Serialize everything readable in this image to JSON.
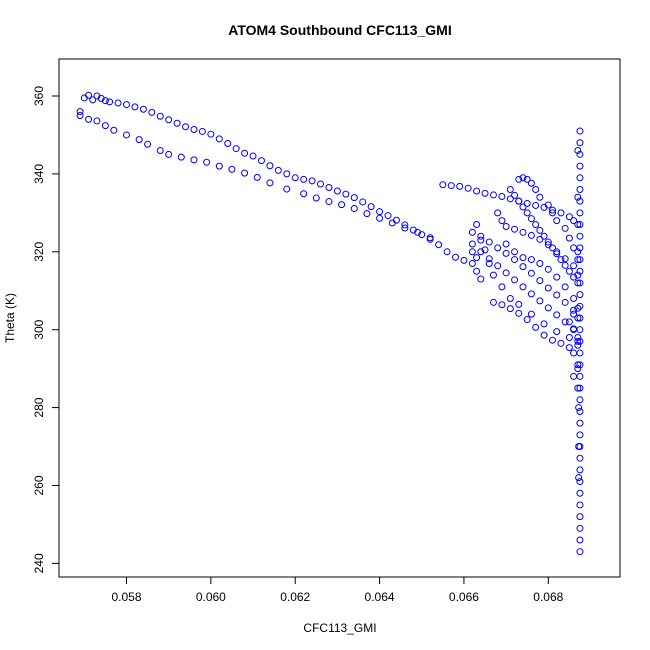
{
  "chart_data": {
    "type": "scatter",
    "title": "ATOM4 Southbound CFC113_GMI",
    "xlabel": "CFC113_GMI",
    "ylabel": "Theta (K)",
    "xlim": [
      0.0564,
      0.0697
    ],
    "ylim": [
      236.5,
      369.5
    ],
    "x_ticks": [
      0.058,
      0.06,
      0.062,
      0.064,
      0.066,
      0.068
    ],
    "x_tick_labels": [
      "0.058",
      "0.060",
      "0.062",
      "0.064",
      "0.066",
      "0.068"
    ],
    "y_ticks": [
      240,
      260,
      280,
      300,
      320,
      340,
      360
    ],
    "y_tick_labels": [
      "240",
      "260",
      "280",
      "300",
      "320",
      "340",
      "360"
    ],
    "grid": false,
    "marker": "open-circle",
    "color": "#0000ff",
    "series": [
      {
        "points": [
          [
            0.0569,
            356.0
          ],
          [
            0.057,
            359.5
          ],
          [
            0.0571,
            360.2
          ],
          [
            0.0572,
            359.0
          ],
          [
            0.0573,
            360.0
          ],
          [
            0.0574,
            359.4
          ],
          [
            0.0575,
            358.8
          ],
          [
            0.0576,
            358.5
          ],
          [
            0.0578,
            358.2
          ],
          [
            0.058,
            357.8
          ],
          [
            0.0582,
            357.2
          ],
          [
            0.0584,
            356.6
          ],
          [
            0.0586,
            355.8
          ],
          [
            0.0588,
            354.8
          ],
          [
            0.059,
            353.9
          ],
          [
            0.0592,
            353.0
          ],
          [
            0.0594,
            352.1
          ],
          [
            0.0596,
            351.4
          ],
          [
            0.0598,
            350.9
          ],
          [
            0.06,
            350.2
          ],
          [
            0.0602,
            349.0
          ],
          [
            0.0604,
            347.8
          ],
          [
            0.0606,
            346.5
          ],
          [
            0.0608,
            345.3
          ],
          [
            0.061,
            344.6
          ],
          [
            0.0612,
            343.4
          ],
          [
            0.0614,
            342.1
          ],
          [
            0.0616,
            340.9
          ],
          [
            0.0618,
            340.0
          ],
          [
            0.062,
            339.0
          ],
          [
            0.0622,
            338.6
          ],
          [
            0.0624,
            338.2
          ],
          [
            0.0626,
            337.4
          ],
          [
            0.0628,
            336.5
          ],
          [
            0.063,
            335.6
          ],
          [
            0.0632,
            334.8
          ],
          [
            0.0634,
            333.9
          ],
          [
            0.0636,
            332.8
          ],
          [
            0.0638,
            331.6
          ],
          [
            0.064,
            330.3
          ],
          [
            0.0642,
            329.3
          ],
          [
            0.0644,
            328.1
          ],
          [
            0.0646,
            326.9
          ],
          [
            0.0648,
            325.6
          ],
          [
            0.065,
            324.4
          ],
          [
            0.0652,
            323.2
          ],
          [
            0.0654,
            321.8
          ],
          [
            0.0656,
            320.0
          ],
          [
            0.0658,
            318.6
          ],
          [
            0.066,
            317.8
          ],
          [
            0.0569,
            355.0
          ],
          [
            0.0571,
            354.0
          ],
          [
            0.0573,
            353.6
          ],
          [
            0.0575,
            352.4
          ],
          [
            0.0577,
            351.2
          ],
          [
            0.058,
            350.0
          ],
          [
            0.0583,
            348.8
          ],
          [
            0.0585,
            347.6
          ],
          [
            0.0588,
            346.0
          ],
          [
            0.059,
            345.0
          ],
          [
            0.0593,
            344.3
          ],
          [
            0.0596,
            343.6
          ],
          [
            0.0599,
            343.0
          ],
          [
            0.0602,
            342.0
          ],
          [
            0.0605,
            341.2
          ],
          [
            0.0608,
            340.2
          ],
          [
            0.0611,
            339.1
          ],
          [
            0.0614,
            337.7
          ],
          [
            0.0618,
            336.1
          ],
          [
            0.0622,
            334.9
          ],
          [
            0.0625,
            333.8
          ],
          [
            0.0628,
            332.9
          ],
          [
            0.0631,
            332.1
          ],
          [
            0.0634,
            331.1
          ],
          [
            0.0637,
            329.8
          ],
          [
            0.064,
            328.6
          ],
          [
            0.0643,
            327.4
          ],
          [
            0.0646,
            326.1
          ],
          [
            0.0649,
            325.0
          ],
          [
            0.0652,
            323.6
          ],
          [
            0.0655,
            337.2
          ],
          [
            0.0657,
            337.0
          ],
          [
            0.0659,
            336.8
          ],
          [
            0.0661,
            336.3
          ],
          [
            0.0663,
            335.6
          ],
          [
            0.0665,
            335.0
          ],
          [
            0.0667,
            334.6
          ],
          [
            0.0669,
            334.2
          ],
          [
            0.0671,
            333.6
          ],
          [
            0.0673,
            333.0
          ],
          [
            0.0675,
            332.4
          ],
          [
            0.0677,
            331.9
          ],
          [
            0.0679,
            331.4
          ],
          [
            0.0681,
            330.7
          ],
          [
            0.0683,
            330.0
          ],
          [
            0.0685,
            329.0
          ],
          [
            0.0686,
            328.0
          ],
          [
            0.0687,
            327.0
          ],
          [
            0.0662,
            325.0
          ],
          [
            0.0664,
            324.0
          ],
          [
            0.0666,
            322.5
          ],
          [
            0.0668,
            321.0
          ],
          [
            0.067,
            319.6
          ],
          [
            0.0672,
            318.0
          ],
          [
            0.0674,
            316.2
          ],
          [
            0.0676,
            314.5
          ],
          [
            0.0678,
            312.6
          ],
          [
            0.068,
            310.7
          ],
          [
            0.0682,
            308.9
          ],
          [
            0.0684,
            307.0
          ],
          [
            0.0686,
            305.0
          ],
          [
            0.0687,
            303.0
          ],
          [
            0.0667,
            307.0
          ],
          [
            0.0669,
            306.4
          ],
          [
            0.0671,
            305.4
          ],
          [
            0.0673,
            304.2
          ],
          [
            0.0675,
            302.6
          ],
          [
            0.0677,
            300.6
          ],
          [
            0.0679,
            298.6
          ],
          [
            0.0681,
            297.3
          ],
          [
            0.0683,
            296.5
          ],
          [
            0.0685,
            295.4
          ],
          [
            0.0673,
            338.6
          ],
          [
            0.0674,
            339.0
          ],
          [
            0.0675,
            338.6
          ],
          [
            0.0676,
            337.6
          ],
          [
            0.0677,
            336.0
          ],
          [
            0.0678,
            334.0
          ],
          [
            0.068,
            332.0
          ],
          [
            0.0681,
            330.0
          ],
          [
            0.0682,
            328.0
          ],
          [
            0.0684,
            326.0
          ],
          [
            0.0685,
            323.5
          ],
          [
            0.0686,
            321.0
          ],
          [
            0.0687,
            318.0
          ],
          [
            0.067,
            322.0
          ],
          [
            0.0672,
            320.0
          ],
          [
            0.0674,
            318.5
          ],
          [
            0.0676,
            318.0
          ],
          [
            0.0678,
            317.0
          ],
          [
            0.068,
            315.5
          ],
          [
            0.0682,
            313.5
          ],
          [
            0.0684,
            311.0
          ],
          [
            0.0686,
            308.0
          ],
          [
            0.0687,
            305.5
          ],
          [
            0.0664,
            320.0
          ],
          [
            0.0666,
            318.2
          ],
          [
            0.0668,
            316.4
          ],
          [
            0.067,
            314.6
          ],
          [
            0.0672,
            312.8
          ],
          [
            0.0674,
            311.0
          ],
          [
            0.0676,
            309.2
          ],
          [
            0.0678,
            307.4
          ],
          [
            0.068,
            305.6
          ],
          [
            0.0682,
            303.8
          ],
          [
            0.0684,
            302.0
          ],
          [
            0.0686,
            300.2
          ],
          [
            0.0687,
            298.0
          ],
          [
            0.0668,
            330.0
          ],
          [
            0.0669,
            328.0
          ],
          [
            0.067,
            326.5
          ],
          [
            0.0672,
            325.8
          ],
          [
            0.0674,
            325.0
          ],
          [
            0.0676,
            324.2
          ],
          [
            0.0678,
            323.2
          ],
          [
            0.068,
            321.8
          ],
          [
            0.0682,
            320.0
          ],
          [
            0.0684,
            318.2
          ],
          [
            0.0686,
            316.4
          ],
          [
            0.0687,
            314.0
          ],
          [
            0.0663,
            327.0
          ],
          [
            0.0664,
            323.0
          ],
          [
            0.0665,
            320.5
          ],
          [
            0.0666,
            317.0
          ],
          [
            0.0667,
            314.0
          ],
          [
            0.0669,
            311.0
          ],
          [
            0.0671,
            308.0
          ],
          [
            0.0673,
            306.5
          ],
          [
            0.0676,
            304.0
          ],
          [
            0.0679,
            301.5
          ],
          [
            0.0682,
            299.5
          ],
          [
            0.0685,
            298.0
          ],
          [
            0.0687,
            297.0
          ],
          [
            0.0671,
            336.0
          ],
          [
            0.0672,
            334.5
          ],
          [
            0.0673,
            333.0
          ],
          [
            0.0674,
            331.5
          ],
          [
            0.0675,
            330.0
          ],
          [
            0.0676,
            328.5
          ],
          [
            0.0677,
            327.0
          ],
          [
            0.0678,
            325.5
          ],
          [
            0.0679,
            324.0
          ],
          [
            0.068,
            322.5
          ],
          [
            0.0681,
            321.0
          ],
          [
            0.0682,
            319.5
          ],
          [
            0.0683,
            318.0
          ],
          [
            0.0684,
            316.5
          ],
          [
            0.0685,
            315.0
          ],
          [
            0.0686,
            313.5
          ],
          [
            0.0687,
            312.0
          ],
          [
            0.0662,
            322.0
          ],
          [
            0.0662,
            320.0
          ],
          [
            0.0663,
            318.5
          ],
          [
            0.0662,
            317.0
          ],
          [
            0.0663,
            315.0
          ],
          [
            0.0664,
            313.0
          ],
          [
            0.0686,
            304.0
          ],
          [
            0.0685,
            302.0
          ],
          [
            0.0686,
            300.0
          ],
          [
            0.0687,
            296.0
          ],
          [
            0.0686,
            294.0
          ],
          [
            0.0687,
            291.0
          ],
          [
            0.0686,
            288.0
          ],
          [
            0.0687,
            285.0
          ],
          [
            0.06875,
            351.0
          ],
          [
            0.06875,
            348.0
          ],
          [
            0.06875,
            345.0
          ],
          [
            0.06875,
            342.0
          ],
          [
            0.06875,
            339.0
          ],
          [
            0.06875,
            336.0
          ],
          [
            0.06875,
            333.0
          ],
          [
            0.06875,
            330.0
          ],
          [
            0.06875,
            327.0
          ],
          [
            0.06875,
            324.0
          ],
          [
            0.06875,
            321.0
          ],
          [
            0.06875,
            318.0
          ],
          [
            0.06875,
            315.0
          ],
          [
            0.06875,
            312.0
          ],
          [
            0.06875,
            309.0
          ],
          [
            0.06875,
            306.0
          ],
          [
            0.06875,
            303.0
          ],
          [
            0.06875,
            300.0
          ],
          [
            0.06875,
            297.0
          ],
          [
            0.06875,
            294.0
          ],
          [
            0.06875,
            291.0
          ],
          [
            0.06875,
            288.0
          ],
          [
            0.06875,
            285.0
          ],
          [
            0.06875,
            282.0
          ],
          [
            0.06875,
            279.0
          ],
          [
            0.06875,
            276.0
          ],
          [
            0.06875,
            273.0
          ],
          [
            0.06875,
            270.0
          ],
          [
            0.06875,
            267.0
          ],
          [
            0.06875,
            264.0
          ],
          [
            0.06875,
            261.0
          ],
          [
            0.06875,
            258.0
          ],
          [
            0.06875,
            255.0
          ],
          [
            0.06875,
            252.0
          ],
          [
            0.06875,
            249.0
          ],
          [
            0.06875,
            246.0
          ],
          [
            0.06875,
            243.0
          ],
          [
            0.06872,
            262.0
          ],
          [
            0.06872,
            270.0
          ],
          [
            0.06872,
            280.0
          ],
          [
            0.0687,
            290.0
          ],
          [
            0.0687,
            320.0
          ],
          [
            0.0687,
            334.0
          ],
          [
            0.0687,
            346.0
          ]
        ]
      }
    ]
  }
}
